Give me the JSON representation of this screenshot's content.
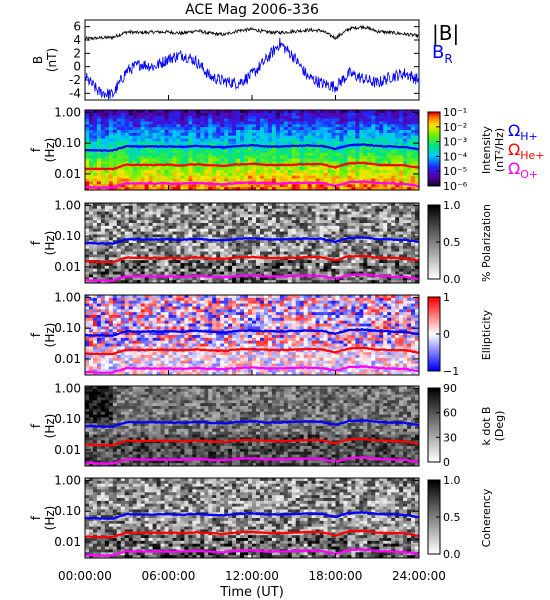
{
  "title": "ACE Mag 2006-336",
  "time_axis": {
    "label": "Time (UT)",
    "ticks": [
      "00:00:00",
      "06:00:00",
      "12:00:00",
      "18:00:00",
      "24:00:00"
    ],
    "tick_hours": [
      0,
      6,
      12,
      18,
      24
    ]
  },
  "legend_top": {
    "btot": "|B|",
    "br_main": "B",
    "br_sub": "R",
    "colors": {
      "btot": "#000000",
      "br": "#0000ff"
    }
  },
  "legend_spec": {
    "omega": "Ω",
    "items": [
      {
        "sub": "H+",
        "color": "#0000ff"
      },
      {
        "sub": "He+",
        "color": "#ff0000"
      },
      {
        "sub": "O+",
        "color": "#ff00ff"
      }
    ]
  },
  "freq_axis": {
    "label_main": "f",
    "label_unit": "(Hz)",
    "ticks": [
      "1.00",
      "0.10",
      "0.01"
    ],
    "tick_values": [
      1.0,
      0.1,
      0.01
    ],
    "range": [
      0.003,
      1.2
    ],
    "scale": "log"
  },
  "colors": {
    "blue": "#0000ff",
    "red": "#ff0000",
    "magenta": "#ff00ff"
  },
  "panels": [
    {
      "id": "intensity",
      "cbar_title": "Intensity",
      "cbar_unit": "(nT²/Hz)",
      "cbar_ticks": [
        "10⁻¹",
        "10⁻²",
        "10⁻³",
        "10⁻⁴",
        "10⁻⁵",
        "10⁻⁶"
      ],
      "scheme": "rainbow"
    },
    {
      "id": "polarization",
      "cbar_title": "% Polarization",
      "cbar_unit": "",
      "cbar_ticks": [
        "1.0",
        "0.5",
        "0.0"
      ],
      "scheme": "gray"
    },
    {
      "id": "ellipticity",
      "cbar_title": "Ellipticity",
      "cbar_unit": "",
      "cbar_ticks": [
        "1",
        "0",
        "−1"
      ],
      "scheme": "bwr"
    },
    {
      "id": "kdotb",
      "cbar_title": "k dot B",
      "cbar_unit": "(Deg)",
      "cbar_ticks": [
        "90",
        "60",
        "30",
        "0"
      ],
      "scheme": "gray"
    },
    {
      "id": "coherency",
      "cbar_title": "Coherency",
      "cbar_unit": "",
      "cbar_ticks": [
        "1.0",
        "0.5",
        "0.0"
      ],
      "scheme": "gray"
    }
  ],
  "chart_data": [
    {
      "type": "line",
      "title": "ACE Mag 2006-336",
      "ylabel": "B (nT)",
      "xlabel": "",
      "ylim": [
        -5,
        7
      ],
      "yticks": [
        "6",
        "4",
        "2",
        "0",
        "-2",
        "-4"
      ],
      "ytick_values": [
        6,
        4,
        2,
        0,
        -2,
        -4
      ],
      "xlim": [
        0,
        24
      ],
      "x": [
        0,
        1,
        2,
        3,
        4,
        5,
        6,
        7,
        8,
        9,
        10,
        11,
        12,
        13,
        14,
        15,
        16,
        17,
        18,
        19,
        20,
        21,
        22,
        23,
        24
      ],
      "series": [
        {
          "name": "|B|",
          "values": [
            4.2,
            4.3,
            4.4,
            5.2,
            5.1,
            5.2,
            5.2,
            5.0,
            5.4,
            5.0,
            4.8,
            5.4,
            5.6,
            5.2,
            5.1,
            5.3,
            5.5,
            5.4,
            4.3,
            5.7,
            6.0,
            5.3,
            5.1,
            4.9,
            4.6
          ]
        },
        {
          "name": "BR",
          "values": [
            -1.5,
            -3.8,
            -4.2,
            -0.6,
            0.4,
            0.0,
            1.2,
            1.8,
            0.8,
            -1.5,
            -2.2,
            -2.5,
            -1.2,
            1.0,
            3.5,
            1.5,
            -1.5,
            -2.5,
            -3.0,
            -1.0,
            -1.8,
            -2.5,
            -1.5,
            -1.0,
            -2.0
          ]
        }
      ]
    },
    {
      "type": "line",
      "ylabel": "f (Hz)",
      "xlabel": "Time (UT)",
      "xlim": [
        0,
        24
      ],
      "ylim": [
        0.003,
        1.2
      ],
      "yscale": "log",
      "x": [
        0,
        1,
        2,
        3,
        4,
        5,
        6,
        7,
        8,
        9,
        10,
        11,
        12,
        13,
        14,
        15,
        16,
        17,
        18,
        19,
        20,
        21,
        22,
        23,
        24
      ],
      "series": [
        {
          "name": "H+",
          "values": [
            0.06,
            0.058,
            0.057,
            0.08,
            0.078,
            0.079,
            0.079,
            0.076,
            0.082,
            0.076,
            0.073,
            0.082,
            0.085,
            0.079,
            0.078,
            0.081,
            0.084,
            0.082,
            0.065,
            0.087,
            0.091,
            0.081,
            0.078,
            0.075,
            0.064
          ]
        },
        {
          "name": "He+",
          "values": [
            0.015,
            0.0145,
            0.0143,
            0.02,
            0.0195,
            0.0198,
            0.0198,
            0.019,
            0.0205,
            0.019,
            0.0183,
            0.0205,
            0.021,
            0.0198,
            0.0195,
            0.02,
            0.021,
            0.0205,
            0.0163,
            0.022,
            0.023,
            0.02,
            0.0195,
            0.019,
            0.016
          ]
        },
        {
          "name": "O+",
          "values": [
            0.0038,
            0.0036,
            0.0036,
            0.005,
            0.0049,
            0.0049,
            0.0049,
            0.0048,
            0.0051,
            0.0048,
            0.0046,
            0.0051,
            0.0053,
            0.0049,
            0.0049,
            0.0051,
            0.0052,
            0.0051,
            0.0041,
            0.0054,
            0.0057,
            0.0051,
            0.0049,
            0.0047,
            0.004
          ]
        }
      ]
    }
  ]
}
